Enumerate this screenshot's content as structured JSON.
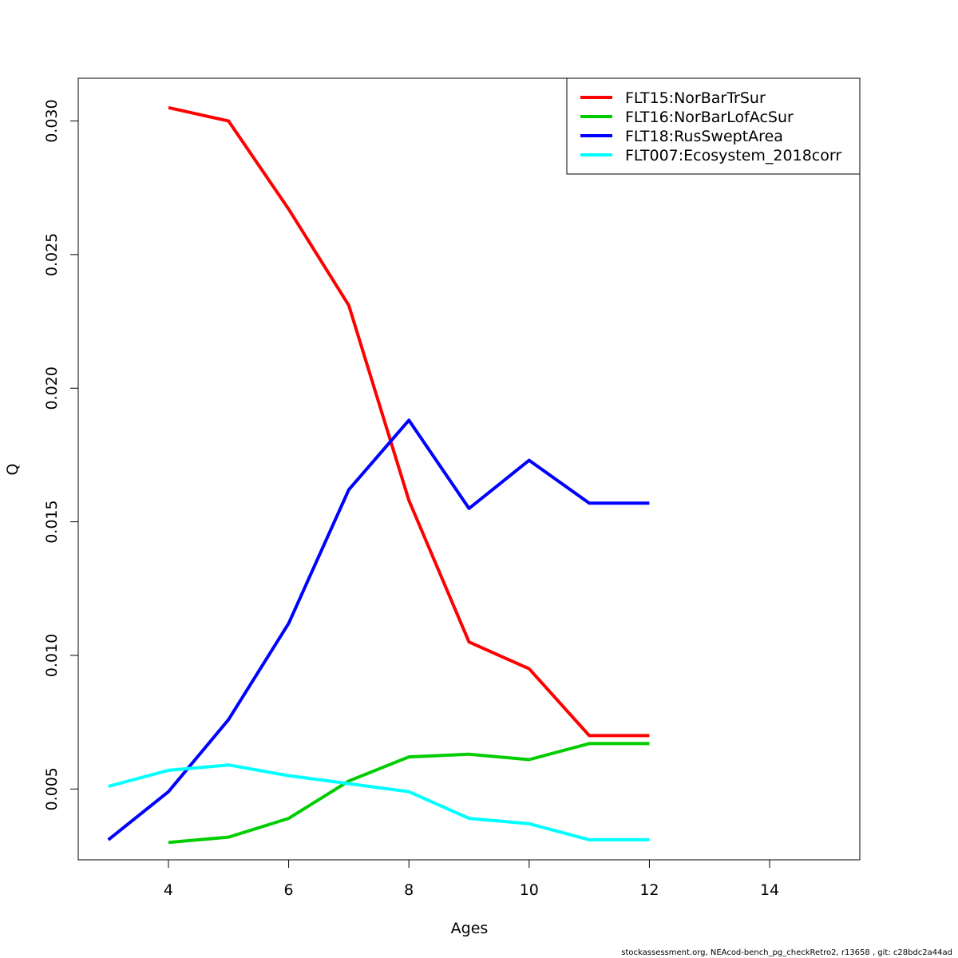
{
  "chart_data": {
    "type": "line",
    "title": "",
    "xlabel": "Ages",
    "ylabel": "Q",
    "xlim": [
      2.5,
      15.5
    ],
    "ylim": [
      0.00235,
      0.0316
    ],
    "xticks": [
      4,
      6,
      8,
      10,
      12,
      14
    ],
    "xtick_labels": [
      "4",
      "6",
      "8",
      "10",
      "12",
      "14"
    ],
    "yticks": [
      0.005,
      0.01,
      0.015,
      0.02,
      0.025,
      0.03
    ],
    "ytick_labels": [
      "0.005",
      "0.010",
      "0.015",
      "0.020",
      "0.025",
      "0.030"
    ],
    "grid": false,
    "legend_position": "top-right",
    "series": [
      {
        "name": "FLT15:NorBarTrSur",
        "color": "#FF0000",
        "x": [
          4,
          5,
          6,
          7,
          8,
          9,
          10,
          11,
          12
        ],
        "values": [
          0.0305,
          0.03,
          0.0267,
          0.0231,
          0.0158,
          0.0105,
          0.0095,
          0.007,
          0.007
        ]
      },
      {
        "name": "FLT16:NorBarLofAcSur",
        "color": "#00CD00",
        "x": [
          4,
          5,
          6,
          7,
          8,
          9,
          10,
          11,
          12
        ],
        "values": [
          0.003,
          0.0032,
          0.0039,
          0.0053,
          0.0062,
          0.0063,
          0.0061,
          0.0067,
          0.0067
        ]
      },
      {
        "name": "FLT18:RusSweptArea",
        "color": "#0000FF",
        "x": [
          3,
          4,
          5,
          6,
          7,
          8,
          9,
          10,
          11,
          12
        ],
        "values": [
          0.0031,
          0.0049,
          0.0076,
          0.0112,
          0.0162,
          0.0188,
          0.0155,
          0.0173,
          0.0157,
          0.0157
        ]
      },
      {
        "name": "FLT007:Ecosystem_2018corr",
        "color": "#00FFFF",
        "x": [
          3,
          4,
          5,
          6,
          7,
          8,
          9,
          10,
          11,
          12
        ],
        "values": [
          0.0051,
          0.0057,
          0.0059,
          0.0055,
          0.0052,
          0.0049,
          0.0039,
          0.0037,
          0.0031,
          0.0031
        ]
      }
    ]
  },
  "footer": "stockassessment.org, NEAcod-bench_pg_checkRetro2, r13658 , git: c28bdc2a44ad"
}
